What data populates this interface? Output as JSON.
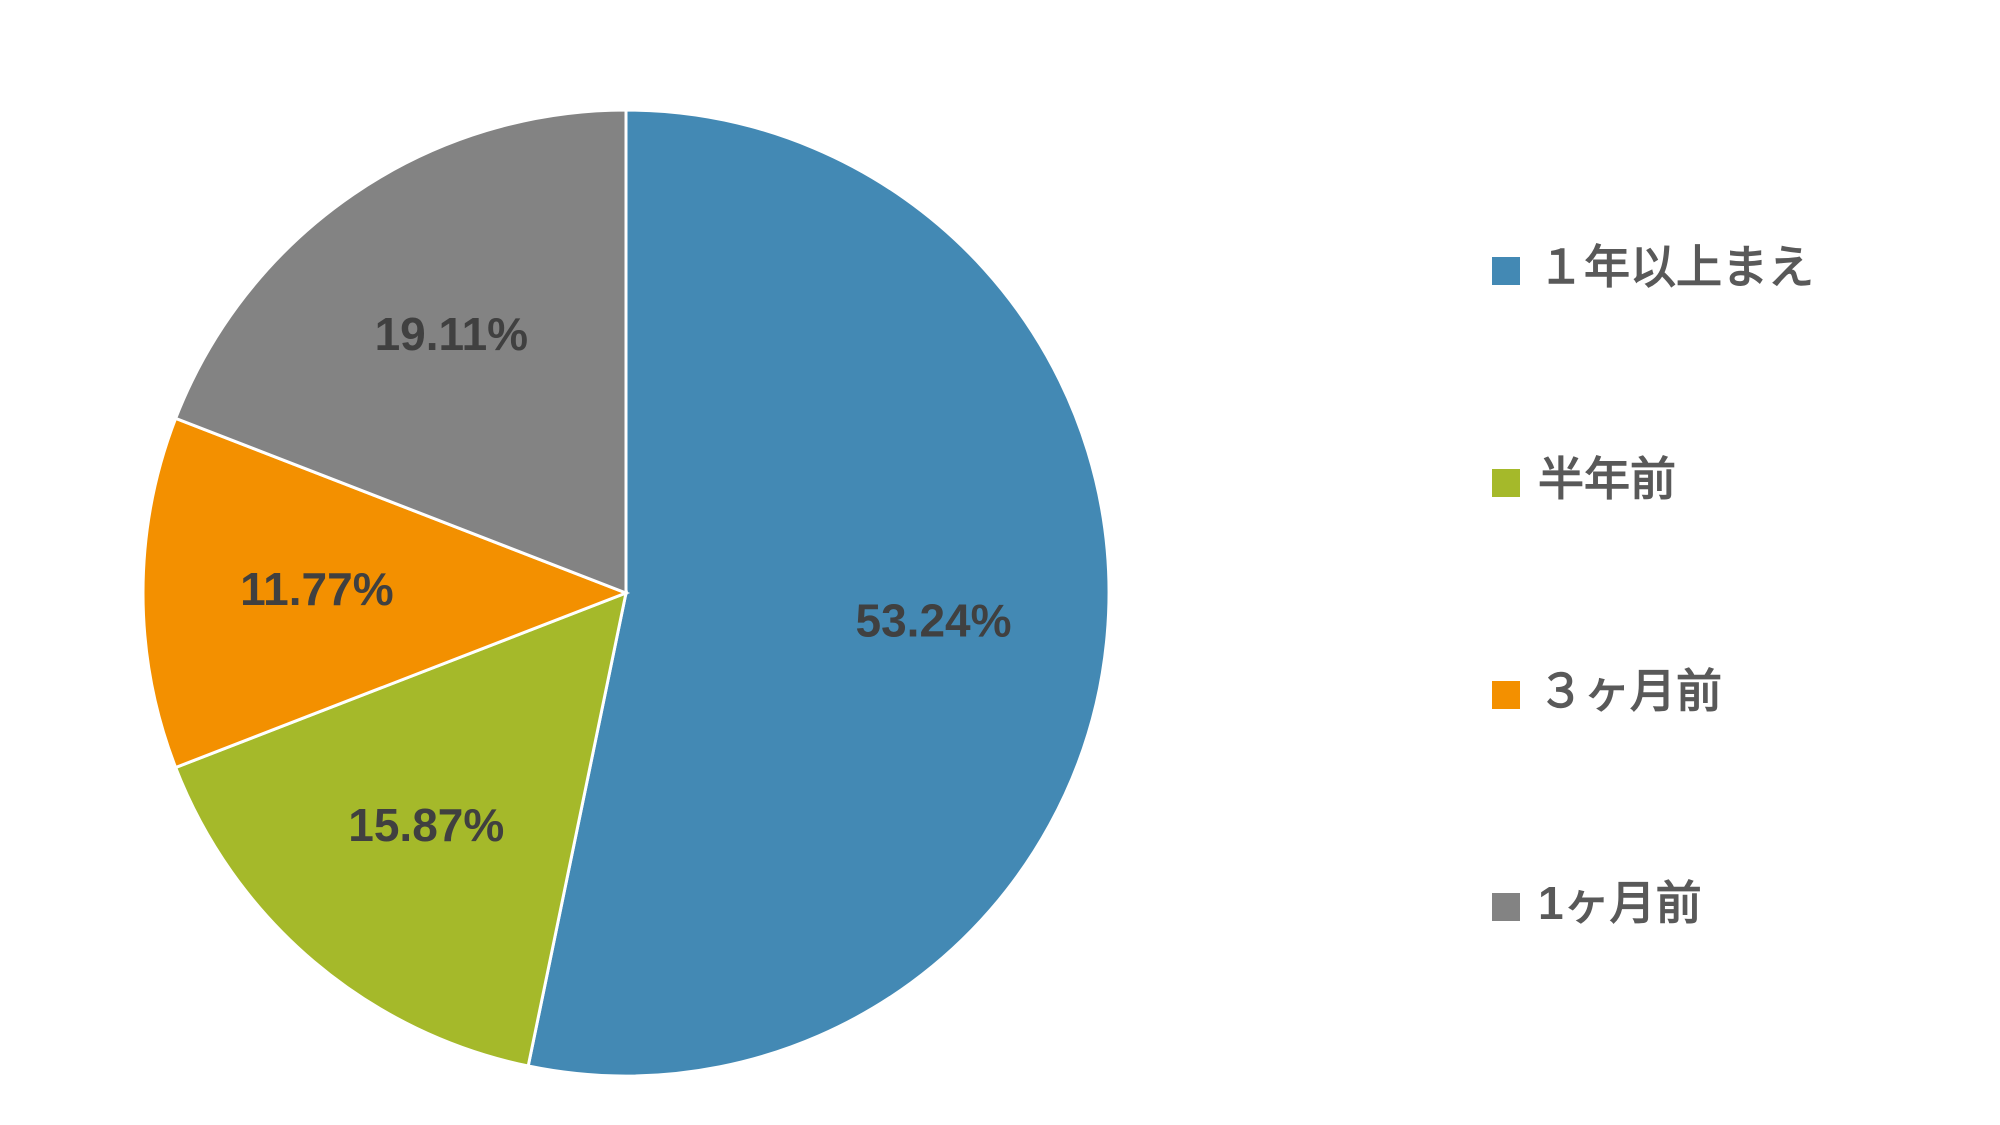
{
  "chart_data": {
    "type": "pie",
    "categories": [
      "１年以上まえ",
      "半年前",
      "３ヶ月前",
      "1ヶ月前"
    ],
    "values": [
      53.24,
      15.87,
      11.77,
      19.11
    ],
    "value_labels": [
      "53.24%",
      "15.87%",
      "11.77%",
      "19.11%"
    ],
    "colors": [
      "#4389b4",
      "#a5b92a",
      "#f39000",
      "#838383"
    ],
    "legend": "right"
  }
}
